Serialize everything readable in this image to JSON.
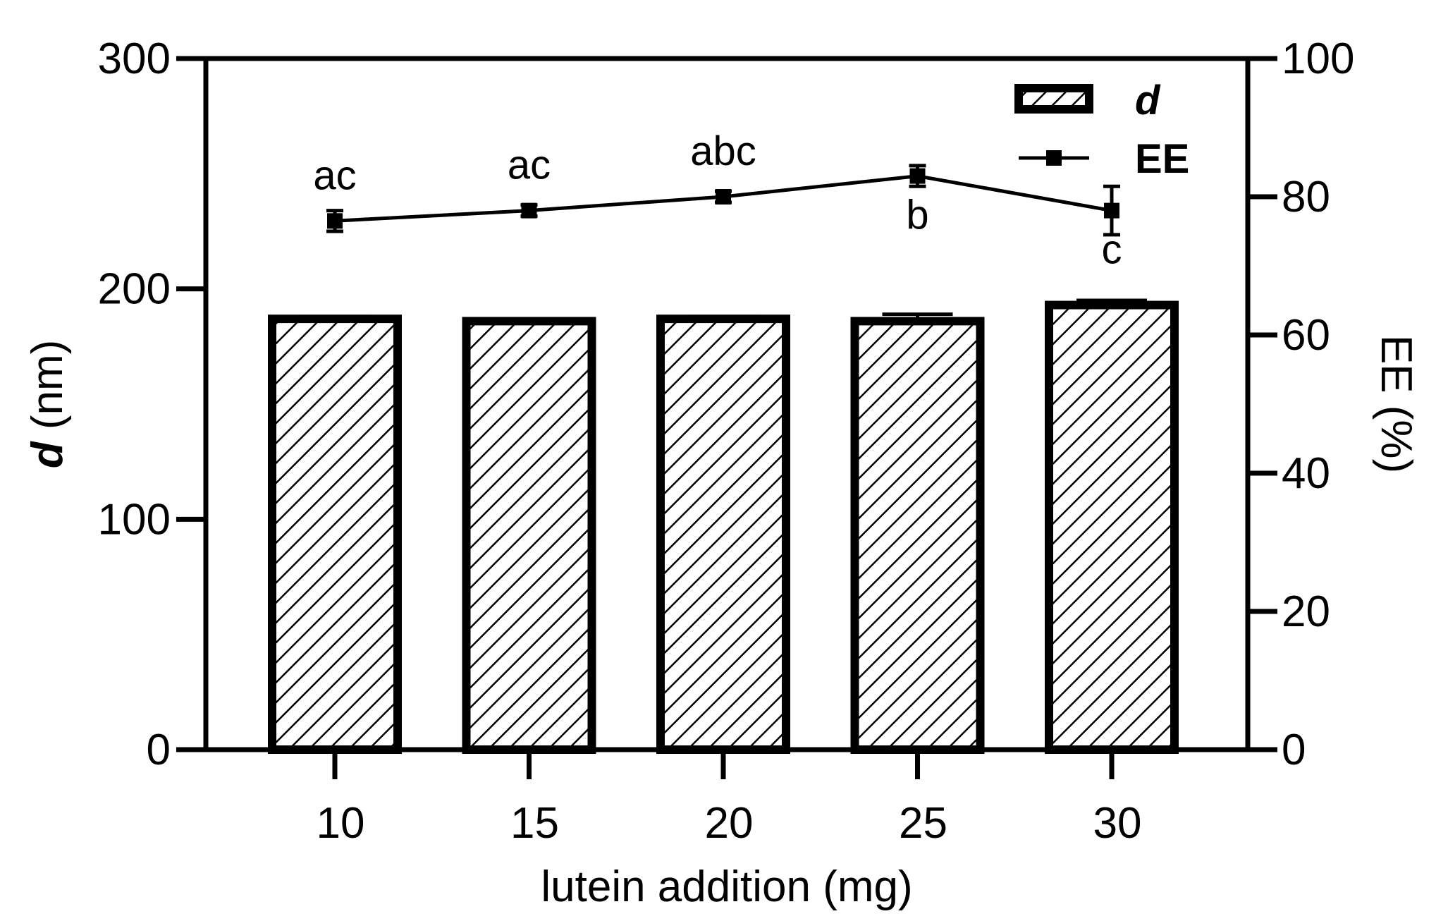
{
  "chart_data": {
    "type": "bar",
    "categories": [
      "10",
      "15",
      "20",
      "25",
      "30"
    ],
    "xlabel": "lutein addition (mg)",
    "ylabel_left_italic": "d",
    "ylabel_left_rest": " (nm)",
    "ylabel_right": "EE (%)",
    "ylim_left": [
      0,
      300
    ],
    "ylim_right": [
      0,
      100
    ],
    "yticks_left": [
      "0",
      "100",
      "200",
      "300"
    ],
    "yticks_right": [
      "0",
      "20",
      "40",
      "60",
      "80",
      "100"
    ],
    "series": [
      {
        "name": "d",
        "kind": "bar",
        "axis": "left",
        "pattern": "diagonal-hatch",
        "values": [
          187,
          186,
          187,
          186,
          193
        ],
        "errors": [
          1,
          1,
          1,
          3,
          2
        ]
      },
      {
        "name": "EE",
        "kind": "line",
        "axis": "right",
        "marker": "square",
        "values": [
          76.5,
          78,
          80,
          83,
          78
        ],
        "errors": [
          1.5,
          0.8,
          0.8,
          1.5,
          3.5
        ],
        "annotations": [
          "ac",
          "ac",
          "abc",
          "b",
          "c"
        ],
        "annotation_positions": [
          "above",
          "above",
          "above",
          "below",
          "below"
        ]
      }
    ],
    "legend_position": "top-right",
    "grid": false,
    "colors": {
      "bar_edge": "#000000",
      "bar_hatch": "#000000",
      "line": "#000000"
    }
  }
}
